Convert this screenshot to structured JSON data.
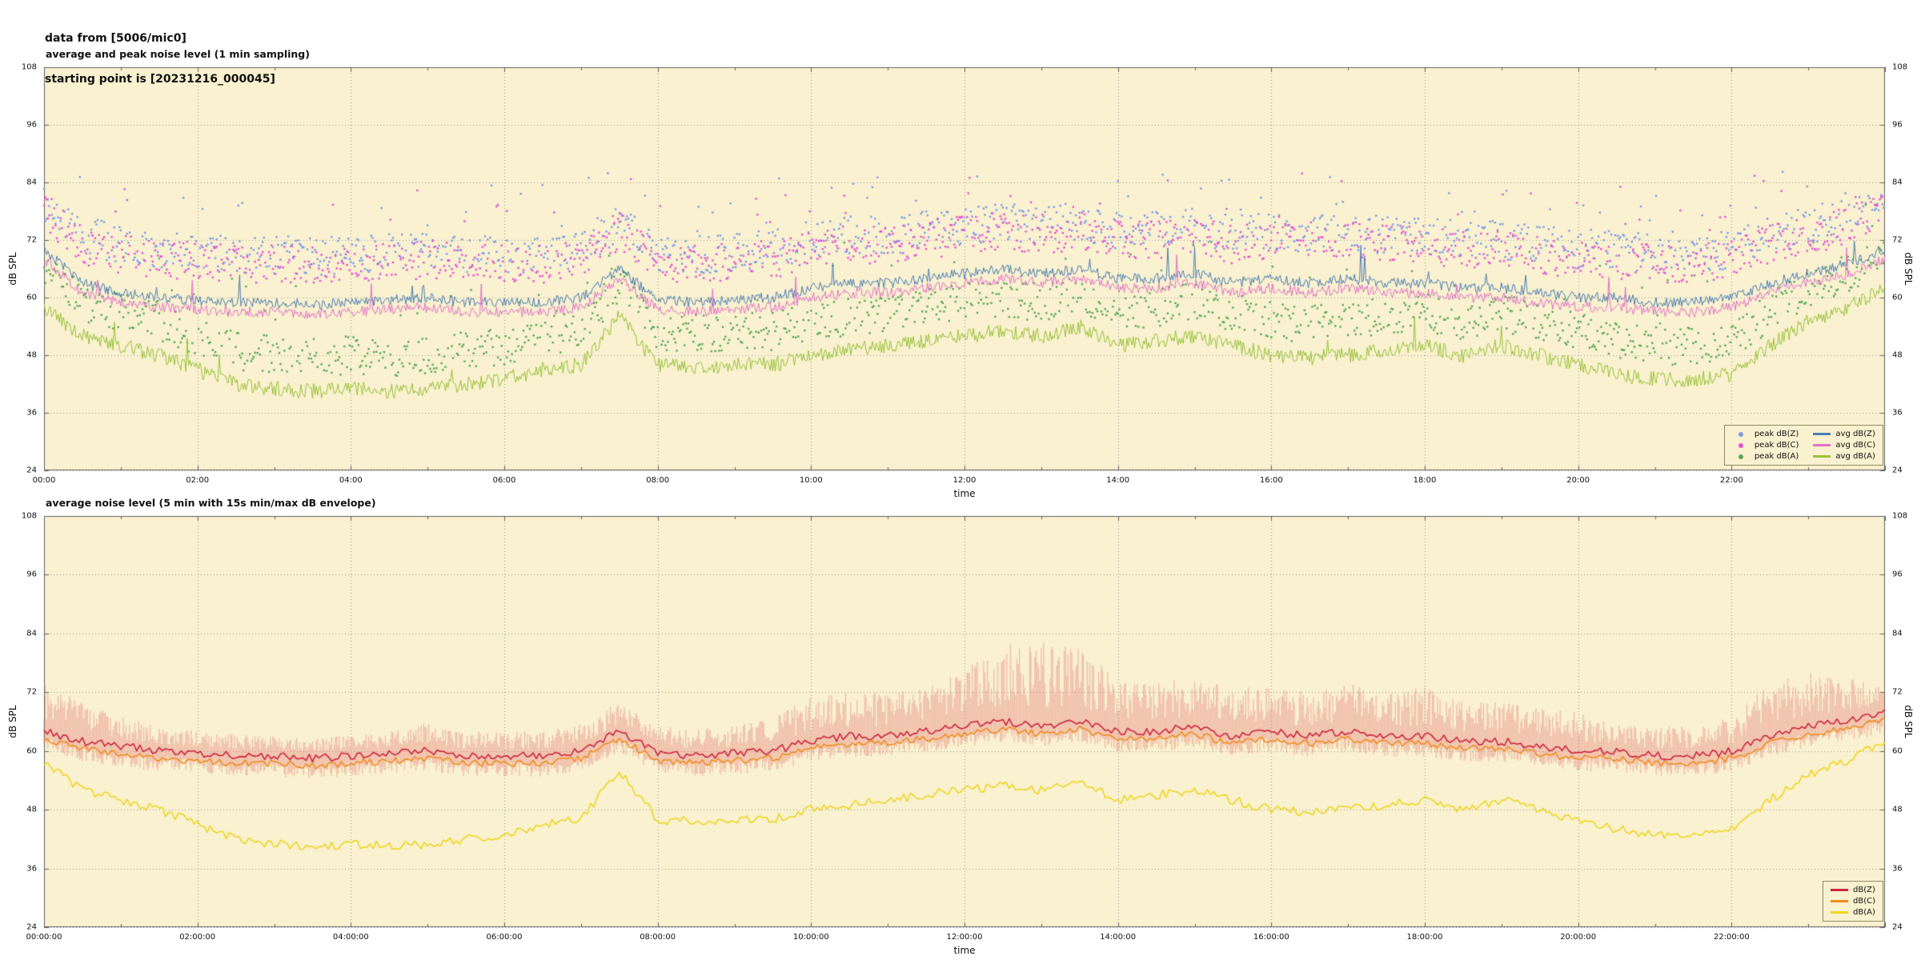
{
  "header": {
    "line1": "data from [5006/mic0]",
    "line2": "starting point is [20231216_000045]"
  },
  "colors": {
    "page_bg": "#ffffff",
    "plot_bg": "#f9f1cf",
    "grid": "#a0a0a0",
    "frame": "#606060",
    "text": "#111111",
    "legend_border": "#8f8a65"
  },
  "chart_data": [
    {
      "type": "line+scatter",
      "title": "average and peak noise level (1 min sampling)",
      "xlabel": "time",
      "ylabel_left": "dB SPL",
      "ylabel_right": "dB SPL",
      "ylim": [
        24,
        108
      ],
      "yticks": [
        24,
        36,
        48,
        60,
        72,
        84,
        96,
        108
      ],
      "xtick_hours": [
        0,
        2,
        4,
        6,
        8,
        10,
        12,
        14,
        16,
        18,
        20,
        22
      ],
      "xtick_labels": [
        "00:00",
        "02:00",
        "04:00",
        "06:00",
        "08:00",
        "10:00",
        "12:00",
        "14:00",
        "16:00",
        "18:00",
        "20:00",
        "22:00"
      ],
      "grid": true,
      "legend_position": "bottom-right",
      "x_hours": [
        0,
        0.5,
        1,
        1.5,
        2,
        2.5,
        3,
        3.5,
        4,
        4.5,
        5,
        5.5,
        6,
        6.5,
        7,
        7.5,
        8,
        8.5,
        9,
        9.5,
        10,
        10.5,
        11,
        11.5,
        12,
        12.5,
        13,
        13.5,
        14,
        14.5,
        15,
        15.5,
        16,
        16.5,
        17,
        17.5,
        18,
        18.5,
        19,
        19.5,
        20,
        20.5,
        21,
        21.5,
        22,
        22.5,
        23,
        23.5,
        24
      ],
      "series": [
        {
          "name": "avg dB(Z)",
          "color": "#4a7db5",
          "values": [
            70,
            63,
            61,
            60,
            59.5,
            59,
            59,
            58.5,
            59,
            59.5,
            60,
            59,
            59,
            59,
            60,
            66,
            59.5,
            59,
            59.5,
            60,
            62,
            63,
            63,
            64,
            65,
            66,
            65,
            66,
            64,
            64,
            65,
            63,
            64,
            63,
            64,
            63,
            63,
            62,
            62,
            61,
            60,
            60,
            59,
            59,
            60,
            63,
            65,
            67,
            70
          ]
        },
        {
          "name": "avg dB(C)",
          "color": "#e272c8",
          "values": [
            68,
            61,
            59,
            58,
            57.5,
            57,
            57,
            56.5,
            57,
            57.5,
            58,
            57,
            57,
            57,
            58,
            64,
            57.5,
            57,
            57.5,
            58,
            60,
            61,
            61,
            62,
            63,
            64,
            63,
            64,
            62,
            62,
            63,
            61,
            62,
            61,
            62,
            61,
            61,
            60,
            60,
            59,
            58,
            58,
            57,
            57,
            58,
            61,
            63,
            65,
            68
          ]
        },
        {
          "name": "avg dB(A)",
          "color": "#9ac33a",
          "values": [
            58,
            52,
            50,
            48,
            45,
            42,
            41,
            40.5,
            41,
            40.5,
            41,
            42,
            43,
            45,
            46,
            56,
            46,
            45.5,
            46,
            46,
            48,
            49,
            50,
            51,
            52,
            53,
            52,
            54,
            50,
            51,
            52,
            50,
            48,
            47.5,
            48,
            49,
            50,
            48,
            50,
            48,
            46,
            44,
            43,
            43,
            44,
            50,
            55,
            58,
            62
          ]
        }
      ],
      "scatter_series": [
        {
          "name": "peak dB(Z)",
          "color": "#7b9de8",
          "values": [
            80,
            73,
            71,
            70,
            69.5,
            69,
            69,
            68.5,
            69,
            69.5,
            70,
            69,
            69,
            69,
            70,
            76,
            69.5,
            69,
            69.5,
            70,
            72,
            73,
            73,
            74,
            75,
            76,
            75,
            76,
            74,
            74,
            75,
            73,
            74,
            73,
            74,
            73,
            73,
            72,
            72,
            71,
            70,
            70,
            69,
            69,
            70,
            73,
            75,
            77,
            80
          ]
        },
        {
          "name": "peak dB(C)",
          "color": "#e84fd4",
          "values": [
            78,
            71,
            69,
            68,
            67.5,
            67,
            67,
            66.5,
            67,
            67.5,
            68,
            67,
            67,
            67,
            68,
            74,
            67.5,
            67,
            67.5,
            68,
            70,
            71,
            71,
            72,
            73,
            74,
            73,
            74,
            72,
            72,
            73,
            71,
            72,
            71,
            72,
            71,
            71,
            70,
            70,
            69,
            68,
            68,
            67,
            67,
            68,
            71,
            73,
            75,
            78
          ]
        },
        {
          "name": "peak dB(A)",
          "color": "#57a85c",
          "values": [
            65,
            59,
            57,
            55,
            52,
            49,
            48,
            47.5,
            48,
            47.5,
            48,
            49,
            50,
            52,
            53,
            63,
            53,
            52.5,
            53,
            53,
            55,
            56,
            57,
            58,
            59,
            60,
            59,
            61,
            57,
            58,
            59,
            57,
            55,
            54.5,
            55,
            56,
            57,
            55,
            57,
            55,
            53,
            51,
            50,
            50,
            51,
            57,
            62,
            65,
            69
          ]
        }
      ]
    },
    {
      "type": "line+band",
      "title": "average noise level (5 min with 15s min/max dB envelope)",
      "xlabel": "time",
      "ylabel_left": "dB SPL",
      "ylabel_right": "dB SPL",
      "ylim": [
        24,
        108
      ],
      "yticks": [
        24,
        36,
        48,
        60,
        72,
        84,
        96,
        108
      ],
      "xtick_hours": [
        0,
        2,
        4,
        6,
        8,
        10,
        12,
        14,
        16,
        18,
        20,
        22
      ],
      "xtick_labels": [
        "00:00:00",
        "02:00:00",
        "04:00:00",
        "06:00:00",
        "08:00:00",
        "10:00:00",
        "12:00:00",
        "14:00:00",
        "16:00:00",
        "18:00:00",
        "20:00:00",
        "22:00:00"
      ],
      "grid": true,
      "legend_position": "bottom-right",
      "x_hours": [
        0,
        0.5,
        1,
        1.5,
        2,
        2.5,
        3,
        3.5,
        4,
        4.5,
        5,
        5.5,
        6,
        6.5,
        7,
        7.5,
        8,
        8.5,
        9,
        9.5,
        10,
        10.5,
        11,
        11.5,
        12,
        12.5,
        13,
        13.5,
        14,
        14.5,
        15,
        15.5,
        16,
        16.5,
        17,
        17.5,
        18,
        18.5,
        19,
        19.5,
        20,
        20.5,
        21,
        21.5,
        22,
        22.5,
        23,
        23.5,
        24
      ],
      "series": [
        {
          "name": "dB(Z)",
          "color": "#cf2540",
          "values": [
            64,
            62,
            61,
            60,
            59.5,
            59,
            59,
            58.5,
            59,
            59.5,
            60,
            59,
            59,
            59,
            60,
            64,
            59.5,
            59,
            59.5,
            60,
            62,
            63,
            63,
            64,
            65,
            66,
            65,
            66,
            64,
            64,
            65,
            63,
            64,
            63,
            64,
            63,
            63,
            62,
            62,
            61,
            60,
            60,
            59,
            59,
            60,
            63,
            65,
            66,
            68
          ]
        },
        {
          "name": "dB(C)",
          "color": "#f18c21",
          "values": [
            62.5,
            60.5,
            59.5,
            58.5,
            58,
            57.5,
            57.5,
            57,
            57.5,
            58,
            58.5,
            57.5,
            57.5,
            57.5,
            58.5,
            62.5,
            58,
            57.5,
            58,
            58.5,
            60.5,
            61.5,
            61.5,
            62.5,
            63.5,
            64.5,
            63.5,
            64.5,
            62.5,
            62.5,
            63.5,
            61.5,
            62.5,
            61.5,
            62.5,
            61.5,
            61.5,
            60.5,
            60.5,
            59.5,
            58.5,
            58.5,
            57.5,
            57.5,
            58.5,
            61.5,
            63.5,
            64.5,
            66.5
          ]
        },
        {
          "name": "dB(A)",
          "color": "#f0d722",
          "values": [
            58,
            52,
            50,
            48,
            45,
            42,
            41,
            40.5,
            41,
            40.5,
            41,
            42,
            43,
            45,
            46,
            56,
            46,
            45.5,
            46,
            46,
            48,
            49,
            50,
            51,
            52,
            53,
            52,
            54,
            50,
            51,
            52,
            50,
            48,
            47.5,
            48,
            49,
            50,
            48,
            50,
            48,
            46,
            44,
            43,
            43,
            44,
            50,
            55,
            58,
            62
          ]
        }
      ],
      "band": {
        "name": "15s min/max envelope",
        "color": "rgba(228,122,118,0.42)",
        "max_values": [
          74,
          70,
          67,
          65,
          64,
          63.5,
          63,
          63,
          63,
          64,
          66,
          64,
          64,
          64,
          66,
          70,
          65,
          64.5,
          65,
          67,
          71,
          73,
          72,
          73,
          77,
          82,
          83,
          81,
          75,
          74,
          75,
          73,
          73,
          72,
          74,
          72,
          73,
          70,
          70,
          69,
          68,
          66,
          65,
          65,
          67,
          74,
          76,
          75,
          74
        ],
        "min_offset": 3
      }
    }
  ]
}
